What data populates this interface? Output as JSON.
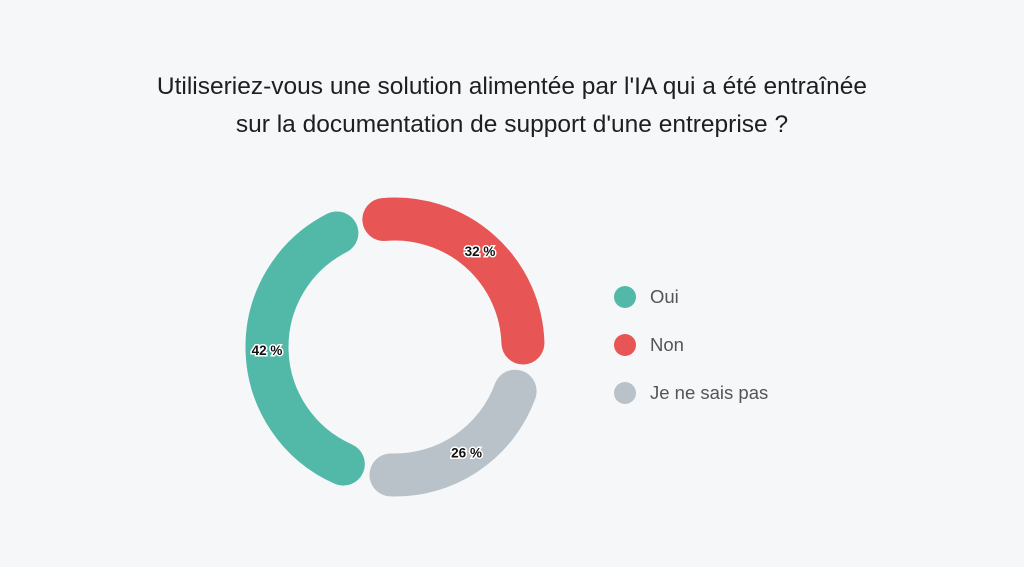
{
  "chart_data": {
    "type": "pie",
    "variant": "donut",
    "title": [
      "Utiliseriez-vous une solution alimentée par l'IA qui a été entraînée",
      "sur la documentation de support d'une entreprise ?"
    ],
    "legend_position": "right",
    "slices": [
      {
        "name": "Oui",
        "value": 42,
        "label": "42 %",
        "color": "#52b9a8"
      },
      {
        "name": "Non",
        "value": 32,
        "label": "32 %",
        "color": "#e85555"
      },
      {
        "name": "Je ne sais pas",
        "value": 26,
        "label": "26 %",
        "color": "#b8c2c8"
      }
    ]
  }
}
